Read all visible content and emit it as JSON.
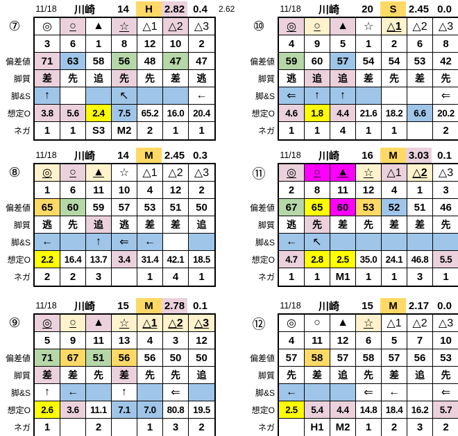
{
  "colors": {
    "palette": {
      "p": "#EAD1DC",
      "c": "#FFF2CC",
      "b": "#9FC5E8",
      "g": "#B6D7A8",
      "o": "#FFD966",
      "y": "#FFFF00",
      "m": "#FF00FF",
      "w": "#FFFFFF"
    }
  },
  "row_labels": {
    "dev": "偏差値",
    "style": "脚質",
    "legs": "脚&S",
    "odds": "想定O",
    "nega": "ネガ"
  },
  "tables": [
    {
      "id": "7",
      "circle": "⑦",
      "header": {
        "date": "11/18",
        "track": "川崎",
        "race": "14",
        "pace": "H",
        "pace_bg": "o",
        "v1": "2.82",
        "v1_bg": "p",
        "v2": "0.4",
        "extra": "2.62"
      },
      "symbols": [
        {
          "t": "◎"
        },
        {
          "t": "○",
          "bg": "p",
          "ul": true
        },
        {
          "t": "▲"
        },
        {
          "t": "☆",
          "bg": "p",
          "ul": true
        },
        {
          "t": "△1"
        },
        {
          "t": "△2",
          "bg": "p"
        },
        {
          "t": "△3"
        }
      ],
      "nums": [
        "3",
        "6",
        "1",
        "8",
        "12",
        "10",
        "2"
      ],
      "dev": [
        {
          "t": "71",
          "bg": "p"
        },
        {
          "t": "63",
          "bg": "b"
        },
        {
          "t": "58"
        },
        {
          "t": "56",
          "bg": "g"
        },
        {
          "t": "48"
        },
        {
          "t": "47",
          "bg": "g"
        },
        {
          "t": "47"
        }
      ],
      "style": [
        {
          "t": "差",
          "bg": "p"
        },
        {
          "t": "先"
        },
        {
          "t": "追"
        },
        {
          "t": "先",
          "bg": "p"
        },
        {
          "t": "先"
        },
        {
          "t": "差"
        },
        {
          "t": "逃"
        }
      ],
      "legs": [
        {
          "t": "↑",
          "bg": "b"
        },
        {
          "t": ""
        },
        {
          "t": "",
          "bg": "b"
        },
        {
          "t": "↖",
          "bg": "b"
        },
        {
          "t": "",
          "bg": "b"
        },
        {
          "t": "",
          "bg": "b"
        },
        {
          "t": "←"
        }
      ],
      "odds": [
        {
          "t": "3.8",
          "bg": "p"
        },
        {
          "t": "5.6",
          "bg": "p"
        },
        {
          "t": "2.4",
          "bg": "y"
        },
        {
          "t": "7.5",
          "bg": "b"
        },
        {
          "t": "65.2"
        },
        {
          "t": "16.0"
        },
        {
          "t": "20.4"
        }
      ],
      "nega": [
        "1",
        "1",
        "S3",
        "M2",
        "2",
        "1",
        "1"
      ]
    },
    {
      "id": "10",
      "circle": "⑩",
      "header": {
        "date": "11/18",
        "track": "川崎",
        "race": "20",
        "pace": "S",
        "pace_bg": "o",
        "v1": "2.45",
        "v1_bg": "",
        "v2": "0.0",
        "extra": ""
      },
      "symbols": [
        {
          "t": "◎",
          "bg": "p",
          "ul": true
        },
        {
          "t": "○",
          "bg": "c",
          "ul": true
        },
        {
          "t": "▲",
          "bg": "p"
        },
        {
          "t": "☆"
        },
        {
          "t": "△1",
          "bg": "c",
          "ul": true,
          "b": true
        },
        {
          "t": "△2"
        },
        {
          "t": "△3"
        }
      ],
      "nums": [
        "4",
        "9",
        "5",
        "1",
        "2",
        "6",
        "8"
      ],
      "dev": [
        {
          "t": "59",
          "bg": "g"
        },
        {
          "t": "60"
        },
        {
          "t": "57",
          "bg": "b"
        },
        {
          "t": "54"
        },
        {
          "t": "54"
        },
        {
          "t": "53"
        },
        {
          "t": "42"
        }
      ],
      "style": [
        {
          "t": "逃"
        },
        {
          "t": "追",
          "bg": "p"
        },
        {
          "t": "追",
          "bg": "p"
        },
        {
          "t": "差"
        },
        {
          "t": "先"
        },
        {
          "t": "差"
        },
        {
          "t": "先"
        }
      ],
      "legs": [
        {
          "t": "⇐",
          "bg": "b"
        },
        {
          "t": "↑",
          "bg": "b"
        },
        {
          "t": "↑",
          "bg": "b"
        },
        {
          "t": "",
          "bg": "b"
        },
        {
          "t": ""
        },
        {
          "t": ""
        },
        {
          "t": "⇐"
        }
      ],
      "odds": [
        {
          "t": "4.6",
          "bg": "p"
        },
        {
          "t": "1.8",
          "bg": "y"
        },
        {
          "t": "4.4",
          "bg": "p"
        },
        {
          "t": "21.6"
        },
        {
          "t": "18.2"
        },
        {
          "t": "6.6",
          "bg": "b"
        },
        {
          "t": "20.2"
        }
      ],
      "nega": [
        "1",
        "1",
        "4",
        "1",
        "1",
        "",
        "2"
      ]
    },
    {
      "id": "8",
      "circle": "⑧",
      "header": {
        "date": "11/18",
        "track": "川崎",
        "race": "14",
        "pace": "M",
        "pace_bg": "o",
        "v1": "2.45",
        "v1_bg": "",
        "v2": "0.3",
        "extra": ""
      },
      "symbols": [
        {
          "t": "◎",
          "bg": "c",
          "ul": true
        },
        {
          "t": "○",
          "bg": "p",
          "ul": true
        },
        {
          "t": "▲",
          "bg": "c",
          "ul": true
        },
        {
          "t": "☆"
        },
        {
          "t": "△1"
        },
        {
          "t": "△2"
        },
        {
          "t": "△3"
        }
      ],
      "nums": [
        "1",
        "6",
        "11",
        "10",
        "4",
        "12",
        "2"
      ],
      "dev": [
        {
          "t": "65",
          "bg": "o"
        },
        {
          "t": "60",
          "bg": "g"
        },
        {
          "t": "59"
        },
        {
          "t": "57"
        },
        {
          "t": "53"
        },
        {
          "t": "51"
        },
        {
          "t": "50"
        }
      ],
      "style": [
        {
          "t": "逃"
        },
        {
          "t": "先"
        },
        {
          "t": "追",
          "bg": "p"
        },
        {
          "t": "逃"
        },
        {
          "t": "差"
        },
        {
          "t": "差"
        },
        {
          "t": "追"
        }
      ],
      "legs": [
        {
          "t": "←",
          "bg": "b"
        },
        {
          "t": "",
          "bg": "b"
        },
        {
          "t": "↑",
          "bg": "b"
        },
        {
          "t": "⇐",
          "bg": "b"
        },
        {
          "t": "←",
          "bg": "b"
        },
        {
          "t": ""
        },
        {
          "t": "",
          "bg": "b"
        }
      ],
      "odds": [
        {
          "t": "2.2",
          "bg": "y"
        },
        {
          "t": "16.4"
        },
        {
          "t": "13.7"
        },
        {
          "t": "3.4",
          "bg": "p"
        },
        {
          "t": "31.4"
        },
        {
          "t": "42.1"
        },
        {
          "t": "18.5"
        }
      ],
      "nega": [
        "2",
        "2",
        "3",
        "",
        "1",
        "4",
        "1"
      ]
    },
    {
      "id": "11",
      "circle": "⑪",
      "header": {
        "date": "11/18",
        "track": "川崎",
        "race": "16",
        "pace": "M",
        "pace_bg": "o",
        "v1": "3.03",
        "v1_bg": "p",
        "v2": "0.1",
        "extra": ""
      },
      "symbols": [
        {
          "t": "◎",
          "bg": "p",
          "ul": true
        },
        {
          "t": "○",
          "bg": "m",
          "ul": true
        },
        {
          "t": "▲",
          "bg": "m",
          "ul": true
        },
        {
          "t": "☆",
          "bg": "c",
          "ul": true
        },
        {
          "t": "△1",
          "bg": "p"
        },
        {
          "t": "△2",
          "bg": "c",
          "ul": true,
          "b": true
        },
        {
          "t": "△3"
        }
      ],
      "nums": [
        "2",
        "8",
        "11",
        "12",
        "4",
        "1",
        "3"
      ],
      "dev": [
        {
          "t": "67",
          "bg": "g"
        },
        {
          "t": "65",
          "bg": "y"
        },
        {
          "t": "60",
          "bg": "m"
        },
        {
          "t": "53",
          "bg": "o"
        },
        {
          "t": "52",
          "bg": "b"
        },
        {
          "t": "51"
        },
        {
          "t": "46"
        }
      ],
      "style": [
        {
          "t": "逃"
        },
        {
          "t": "先",
          "bg": "p"
        },
        {
          "t": "差"
        },
        {
          "t": "先"
        },
        {
          "t": "差"
        },
        {
          "t": "差"
        },
        {
          "t": "先"
        }
      ],
      "legs": [
        {
          "t": "←",
          "bg": "b"
        },
        {
          "t": "↖",
          "bg": "b"
        },
        {
          "t": "",
          "bg": "b"
        },
        {
          "t": "",
          "bg": "b"
        },
        {
          "t": "",
          "bg": "b"
        },
        {
          "t": "",
          "bg": "b"
        },
        {
          "t": "",
          "bg": "b"
        }
      ],
      "odds": [
        {
          "t": "4.7",
          "bg": "p"
        },
        {
          "t": "2.8",
          "bg": "y"
        },
        {
          "t": "2.5",
          "bg": "y"
        },
        {
          "t": "35.0"
        },
        {
          "t": "24.1"
        },
        {
          "t": "46.8"
        },
        {
          "t": "5.5",
          "bg": "p"
        }
      ],
      "nega": [
        "1",
        "1",
        "M1",
        "1",
        "1",
        "3",
        "1"
      ]
    },
    {
      "id": "9",
      "circle": "⑨",
      "header": {
        "date": "11/18",
        "track": "川崎",
        "race": "15",
        "pace": "M",
        "pace_bg": "o",
        "v1": "2.78",
        "v1_bg": "p",
        "v2": "0.1",
        "extra": ""
      },
      "symbols": [
        {
          "t": "◎",
          "bg": "p",
          "ul": true
        },
        {
          "t": "○",
          "bg": "c",
          "ul": true
        },
        {
          "t": "▲",
          "bg": "p"
        },
        {
          "t": "☆",
          "bg": "c",
          "ul": true
        },
        {
          "t": "△1",
          "bg": "c",
          "ul": true,
          "b": true
        },
        {
          "t": "△2",
          "bg": "c",
          "ul": true,
          "b": true
        },
        {
          "t": "△3",
          "bg": "c",
          "ul": true,
          "b": true
        }
      ],
      "nums": [
        "5",
        "9",
        "11",
        "13",
        "4",
        "3",
        "12"
      ],
      "dev": [
        {
          "t": "71",
          "bg": "g"
        },
        {
          "t": "67",
          "bg": "o"
        },
        {
          "t": "51",
          "bg": "g"
        },
        {
          "t": "56",
          "bg": "o"
        },
        {
          "t": "56"
        },
        {
          "t": "50"
        },
        {
          "t": "50"
        }
      ],
      "style": [
        {
          "t": "差",
          "bg": "p"
        },
        {
          "t": "差"
        },
        {
          "t": "先"
        },
        {
          "t": "差",
          "bg": "p"
        },
        {
          "t": "先"
        },
        {
          "t": "先"
        },
        {
          "t": "追"
        }
      ],
      "legs": [
        {
          "t": "↑"
        },
        {
          "t": "←",
          "bg": "b"
        },
        {
          "t": "",
          "bg": "b"
        },
        {
          "t": "↑"
        },
        {
          "t": "",
          "bg": "b"
        },
        {
          "t": "⇐"
        },
        {
          "t": "",
          "bg": "b"
        }
      ],
      "odds": [
        {
          "t": "2.6",
          "bg": "y"
        },
        {
          "t": "3.6",
          "bg": "p"
        },
        {
          "t": "11.1"
        },
        {
          "t": "7.1",
          "bg": "b"
        },
        {
          "t": "7.0",
          "bg": "b"
        },
        {
          "t": "80.8"
        },
        {
          "t": "19.5"
        }
      ],
      "nega": [
        "1",
        "",
        "2",
        "",
        "1",
        "3",
        "2"
      ]
    },
    {
      "id": "12",
      "circle": "⑫",
      "header": {
        "date": "11/18",
        "track": "川崎",
        "race": "15",
        "pace": "M",
        "pace_bg": "o",
        "v1": "2.17",
        "v1_bg": "",
        "v2": "0.0",
        "extra": ""
      },
      "symbols": [
        {
          "t": "◎"
        },
        {
          "t": "○"
        },
        {
          "t": "▲"
        },
        {
          "t": "☆",
          "bg": "c",
          "ul": true
        },
        {
          "t": "△1"
        },
        {
          "t": "△2"
        },
        {
          "t": "△3"
        }
      ],
      "nums": [
        "4",
        "11",
        "12",
        "6",
        "5",
        "7",
        "10"
      ],
      "dev": [
        {
          "t": "57"
        },
        {
          "t": "58",
          "bg": "o"
        },
        {
          "t": "57"
        },
        {
          "t": "58"
        },
        {
          "t": "57"
        },
        {
          "t": "56"
        },
        {
          "t": "53"
        }
      ],
      "style": [
        {
          "t": "先"
        },
        {
          "t": "差"
        },
        {
          "t": "追"
        },
        {
          "t": "先"
        },
        {
          "t": "差"
        },
        {
          "t": "追"
        },
        {
          "t": "先"
        }
      ],
      "legs": [
        {
          "t": "←",
          "bg": "b"
        },
        {
          "t": "",
          "bg": "b"
        },
        {
          "t": "",
          "bg": "b"
        },
        {
          "t": "⇐"
        },
        {
          "t": "←"
        },
        {
          "t": ""
        },
        {
          "t": "⇐"
        }
      ],
      "odds": [
        {
          "t": "2.5",
          "bg": "y"
        },
        {
          "t": "5.4",
          "bg": "p"
        },
        {
          "t": "4.4",
          "bg": "p"
        },
        {
          "t": "14.8"
        },
        {
          "t": "18.4"
        },
        {
          "t": "16.2"
        },
        {
          "t": "5.7",
          "bg": "p"
        }
      ],
      "nega": [
        "",
        "H1",
        "M2",
        "1",
        "2",
        "3",
        "2"
      ]
    }
  ]
}
